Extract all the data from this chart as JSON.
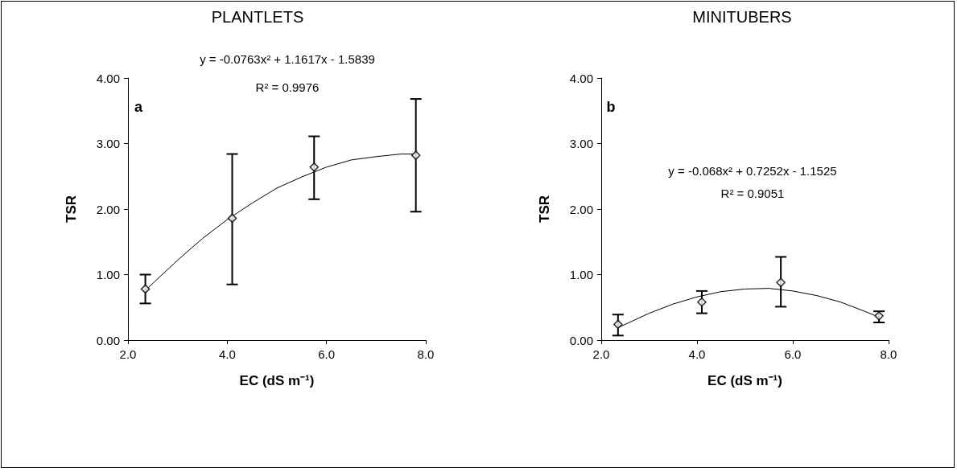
{
  "chart_data": [
    {
      "type": "scatter",
      "title": "PLANTLETS",
      "xlabel": "EC (dS m⁻¹)",
      "ylabel": "TSR",
      "xlim": [
        2,
        8
      ],
      "xticks": [
        {
          "value": 2,
          "label": "2.0"
        },
        {
          "value": 4,
          "label": "4.0"
        },
        {
          "value": 6,
          "label": "6.0"
        },
        {
          "value": 8,
          "label": "8.0"
        }
      ],
      "ylim": [
        0,
        4
      ],
      "yticks": [
        {
          "value": 0,
          "label": "0.00"
        },
        {
          "value": 1,
          "label": "1.00"
        },
        {
          "value": 2,
          "label": "2.00"
        },
        {
          "value": 3,
          "label": "3.00"
        },
        {
          "value": 4,
          "label": "4.00"
        }
      ],
      "grid": false,
      "marker": "diamond",
      "annotations": [
        "y = -0.0763x² + 1.1617x - 1.5839",
        "R² = 0.9976",
        "a"
      ],
      "series": [
        {
          "color": "#000000",
          "x": [
            2.35,
            4.1,
            5.75,
            7.8
          ],
          "values": [
            0.78,
            1.86,
            2.64,
            2.82
          ],
          "errors": [
            [
              0.56,
              1.0
            ],
            [
              0.85,
              2.84
            ],
            [
              2.15,
              3.11
            ],
            [
              1.96,
              3.68
            ]
          ]
        },
        {
          "type": "line",
          "color": "#000000",
          "marker": "none",
          "x": [
            2.35,
            3,
            3.5,
            4,
            4.5,
            5,
            5.5,
            6,
            6.5,
            7,
            7.5,
            7.8
          ],
          "values": [
            0.76,
            1.22,
            1.55,
            1.84,
            2.09,
            2.32,
            2.49,
            2.64,
            2.75,
            2.8,
            2.84,
            2.84
          ]
        }
      ]
    },
    {
      "type": "scatter",
      "title": "MINITUBERS",
      "xlabel": "EC (dS m⁻¹)",
      "ylabel": "TSR",
      "xlim": [
        2,
        8
      ],
      "xticks": [
        {
          "value": 2,
          "label": "2.0"
        },
        {
          "value": 4,
          "label": "4.0"
        },
        {
          "value": 6,
          "label": "6.0"
        },
        {
          "value": 8,
          "label": "8.0"
        }
      ],
      "ylim": [
        0,
        4
      ],
      "yticks": [
        {
          "value": 0,
          "label": "0.00"
        },
        {
          "value": 1,
          "label": "1.00"
        },
        {
          "value": 2,
          "label": "2.00"
        },
        {
          "value": 3,
          "label": "3.00"
        },
        {
          "value": 4,
          "label": "4.00"
        }
      ],
      "grid": false,
      "marker": "diamond",
      "annotations": [
        "y = -0.068x² + 0.7252x - 1.1525",
        "R² = 0.9051",
        "b"
      ],
      "series": [
        {
          "color": "#000000",
          "x": [
            2.35,
            4.1,
            5.75,
            7.8
          ],
          "values": [
            0.24,
            0.58,
            0.88,
            0.37
          ],
          "errors": [
            [
              0.07,
              0.39
            ],
            [
              0.41,
              0.75
            ],
            [
              0.51,
              1.27
            ],
            [
              0.27,
              0.44
            ]
          ]
        },
        {
          "type": "line",
          "color": "#000000",
          "marker": "none",
          "x": [
            2.35,
            3,
            3.5,
            4,
            4.5,
            5,
            5.5,
            6,
            6.5,
            7,
            7.5,
            7.8
          ],
          "values": [
            0.19,
            0.41,
            0.55,
            0.66,
            0.74,
            0.78,
            0.79,
            0.75,
            0.68,
            0.58,
            0.44,
            0.35
          ]
        }
      ]
    }
  ]
}
